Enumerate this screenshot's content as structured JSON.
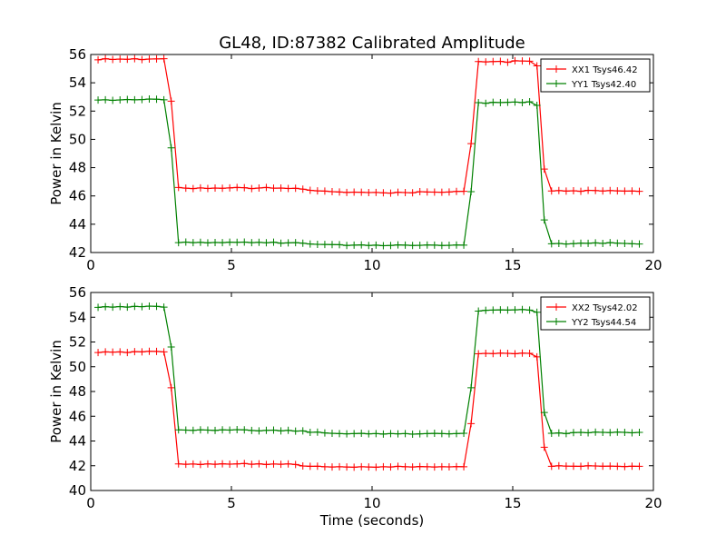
{
  "figure": {
    "title": "GL48, ID:87382 Calibrated Amplitude",
    "xlabel": "Time (seconds)"
  },
  "chart_data": [
    {
      "type": "line",
      "title": "GL48, ID:87382 Calibrated Amplitude",
      "xlabel": "",
      "ylabel": "Power in Kelvin",
      "xlim": [
        0,
        20
      ],
      "ylim": [
        42,
        56
      ],
      "xticks": [
        "0",
        "5",
        "10",
        "15",
        "20"
      ],
      "yticks": [
        "42",
        "44",
        "46",
        "48",
        "50",
        "52",
        "54",
        "56"
      ],
      "legend_position": "top-right",
      "series": [
        {
          "name": "XX1 Tsys46.42",
          "color": "#ff0000",
          "x": [
            0.26,
            0.52,
            0.78,
            1.04,
            1.3,
            1.56,
            1.82,
            2.08,
            2.34,
            2.6,
            2.86,
            3.12,
            3.38,
            3.64,
            3.9,
            4.16,
            4.42,
            4.68,
            4.94,
            5.2,
            5.46,
            5.72,
            5.98,
            6.24,
            6.5,
            6.76,
            7.02,
            7.28,
            7.54,
            7.8,
            8.06,
            8.32,
            8.58,
            8.84,
            9.1,
            9.36,
            9.62,
            9.88,
            10.14,
            10.4,
            10.66,
            10.92,
            11.18,
            11.44,
            11.7,
            11.96,
            12.22,
            12.48,
            12.74,
            13.0,
            13.26,
            13.52,
            13.78,
            14.04,
            14.3,
            14.56,
            14.82,
            15.08,
            15.34,
            15.6,
            15.86,
            16.12,
            16.38,
            16.64,
            16.9,
            17.16,
            17.42,
            17.68,
            17.94,
            18.2,
            18.46,
            18.72,
            18.98,
            19.24,
            19.5
          ],
          "y": [
            55.62,
            55.7,
            55.65,
            55.68,
            55.66,
            55.7,
            55.64,
            55.68,
            55.69,
            55.7,
            52.7,
            46.6,
            46.55,
            46.52,
            46.57,
            46.53,
            46.56,
            46.54,
            46.57,
            46.6,
            46.58,
            46.52,
            46.56,
            46.6,
            46.55,
            46.56,
            46.53,
            46.54,
            46.48,
            46.4,
            46.36,
            46.34,
            46.3,
            46.28,
            46.25,
            46.27,
            46.26,
            46.24,
            46.25,
            46.22,
            46.2,
            46.26,
            46.24,
            46.22,
            46.3,
            46.28,
            46.27,
            46.26,
            46.28,
            46.32,
            46.33,
            49.7,
            55.5,
            55.48,
            55.5,
            55.52,
            55.45,
            55.56,
            55.54,
            55.53,
            55.2,
            47.9,
            46.35,
            46.38,
            46.34,
            46.37,
            46.33,
            46.4,
            46.38,
            46.35,
            46.38,
            46.36,
            46.34,
            46.35,
            46.33
          ]
        },
        {
          "name": "YY1 Tsys42.40",
          "color": "#008000",
          "x": [
            0.26,
            0.52,
            0.78,
            1.04,
            1.3,
            1.56,
            1.82,
            2.08,
            2.34,
            2.6,
            2.86,
            3.12,
            3.38,
            3.64,
            3.9,
            4.16,
            4.42,
            4.68,
            4.94,
            5.2,
            5.46,
            5.72,
            5.98,
            6.24,
            6.5,
            6.76,
            7.02,
            7.28,
            7.54,
            7.8,
            8.06,
            8.32,
            8.58,
            8.84,
            9.1,
            9.36,
            9.62,
            9.88,
            10.14,
            10.4,
            10.66,
            10.92,
            11.18,
            11.44,
            11.7,
            11.96,
            12.22,
            12.48,
            12.74,
            13.0,
            13.26,
            13.52,
            13.78,
            14.04,
            14.3,
            14.56,
            14.82,
            15.08,
            15.34,
            15.6,
            15.86,
            16.12,
            16.38,
            16.64,
            16.9,
            17.16,
            17.42,
            17.68,
            17.94,
            18.2,
            18.46,
            18.72,
            18.98,
            19.24,
            19.5
          ],
          "y": [
            52.78,
            52.8,
            52.76,
            52.79,
            52.82,
            52.8,
            52.81,
            52.85,
            52.84,
            52.8,
            49.4,
            42.7,
            42.74,
            42.7,
            42.72,
            42.68,
            42.71,
            42.7,
            42.73,
            42.72,
            42.74,
            42.7,
            42.72,
            42.69,
            42.73,
            42.66,
            42.68,
            42.7,
            42.66,
            42.6,
            42.58,
            42.57,
            42.56,
            42.55,
            42.5,
            42.52,
            42.54,
            42.5,
            42.52,
            42.48,
            42.5,
            42.54,
            42.52,
            42.5,
            42.51,
            42.53,
            42.52,
            42.5,
            42.51,
            42.53,
            42.52,
            46.3,
            52.6,
            52.55,
            52.62,
            52.6,
            52.62,
            52.64,
            52.6,
            52.66,
            52.4,
            44.3,
            42.62,
            42.64,
            42.6,
            42.63,
            42.66,
            42.65,
            42.68,
            42.64,
            42.7,
            42.66,
            42.64,
            42.62,
            42.6
          ]
        }
      ]
    },
    {
      "type": "line",
      "title": "",
      "xlabel": "Time (seconds)",
      "ylabel": "Power in Kelvin",
      "xlim": [
        0,
        20
      ],
      "ylim": [
        40,
        56
      ],
      "xticks": [
        "0",
        "5",
        "10",
        "15",
        "20"
      ],
      "yticks": [
        "40",
        "42",
        "44",
        "46",
        "48",
        "50",
        "52",
        "54",
        "56"
      ],
      "legend_position": "top-right",
      "series": [
        {
          "name": "XX2 Tsys42.02",
          "color": "#ff0000",
          "x": [
            0.26,
            0.52,
            0.78,
            1.04,
            1.3,
            1.56,
            1.82,
            2.08,
            2.34,
            2.6,
            2.86,
            3.12,
            3.38,
            3.64,
            3.9,
            4.16,
            4.42,
            4.68,
            4.94,
            5.2,
            5.46,
            5.72,
            5.98,
            6.24,
            6.5,
            6.76,
            7.02,
            7.28,
            7.54,
            7.8,
            8.06,
            8.32,
            8.58,
            8.84,
            9.1,
            9.36,
            9.62,
            9.88,
            10.14,
            10.4,
            10.66,
            10.92,
            11.18,
            11.44,
            11.7,
            11.96,
            12.22,
            12.48,
            12.74,
            13.0,
            13.26,
            13.52,
            13.78,
            14.04,
            14.3,
            14.56,
            14.82,
            15.08,
            15.34,
            15.6,
            15.86,
            16.12,
            16.38,
            16.64,
            16.9,
            17.16,
            17.42,
            17.68,
            17.94,
            18.2,
            18.46,
            18.72,
            18.98,
            19.24,
            19.5
          ],
          "y": [
            51.15,
            51.2,
            51.18,
            51.2,
            51.15,
            51.22,
            51.2,
            51.25,
            51.24,
            51.2,
            48.3,
            42.15,
            42.12,
            42.14,
            42.1,
            42.15,
            42.12,
            42.16,
            42.13,
            42.15,
            42.18,
            42.12,
            42.16,
            42.1,
            42.14,
            42.12,
            42.15,
            42.1,
            41.98,
            41.95,
            41.96,
            41.92,
            41.9,
            41.92,
            41.9,
            41.88,
            41.92,
            41.9,
            41.88,
            41.92,
            41.9,
            41.95,
            41.92,
            41.9,
            41.94,
            41.92,
            41.9,
            41.92,
            41.91,
            41.93,
            41.92,
            45.4,
            51.05,
            51.08,
            51.06,
            51.1,
            51.08,
            51.05,
            51.1,
            51.08,
            50.8,
            43.5,
            41.95,
            42.0,
            41.97,
            41.96,
            41.95,
            42.0,
            41.98,
            41.96,
            41.97,
            41.95,
            41.94,
            41.96,
            41.95
          ]
        },
        {
          "name": "YY2 Tsys44.54",
          "color": "#008000",
          "x": [
            0.26,
            0.52,
            0.78,
            1.04,
            1.3,
            1.56,
            1.82,
            2.08,
            2.34,
            2.6,
            2.86,
            3.12,
            3.38,
            3.64,
            3.9,
            4.16,
            4.42,
            4.68,
            4.94,
            5.2,
            5.46,
            5.72,
            5.98,
            6.24,
            6.5,
            6.76,
            7.02,
            7.28,
            7.54,
            7.8,
            8.06,
            8.32,
            8.58,
            8.84,
            9.1,
            9.36,
            9.62,
            9.88,
            10.14,
            10.4,
            10.66,
            10.92,
            11.18,
            11.44,
            11.7,
            11.96,
            12.22,
            12.48,
            12.74,
            13.0,
            13.26,
            13.52,
            13.78,
            14.04,
            14.3,
            14.56,
            14.82,
            15.08,
            15.34,
            15.6,
            15.86,
            16.12,
            16.38,
            16.64,
            16.9,
            17.16,
            17.42,
            17.68,
            17.94,
            18.2,
            18.46,
            18.72,
            18.98,
            19.24,
            19.5
          ],
          "y": [
            54.8,
            54.85,
            54.82,
            54.86,
            54.82,
            54.88,
            54.85,
            54.9,
            54.88,
            54.82,
            51.6,
            44.9,
            44.88,
            44.86,
            44.9,
            44.88,
            44.85,
            44.9,
            44.88,
            44.92,
            44.9,
            44.85,
            44.82,
            44.86,
            44.88,
            44.82,
            44.86,
            44.8,
            44.82,
            44.7,
            44.72,
            44.65,
            44.62,
            44.6,
            44.58,
            44.6,
            44.62,
            44.58,
            44.6,
            44.56,
            44.6,
            44.58,
            44.6,
            44.55,
            44.58,
            44.6,
            44.62,
            44.6,
            44.58,
            44.6,
            44.62,
            48.3,
            54.5,
            54.56,
            54.58,
            54.6,
            54.58,
            54.6,
            54.62,
            54.58,
            54.4,
            46.3,
            44.62,
            44.65,
            44.6,
            44.68,
            44.7,
            44.66,
            44.72,
            44.7,
            44.68,
            44.72,
            44.7,
            44.66,
            44.7
          ]
        }
      ]
    }
  ]
}
